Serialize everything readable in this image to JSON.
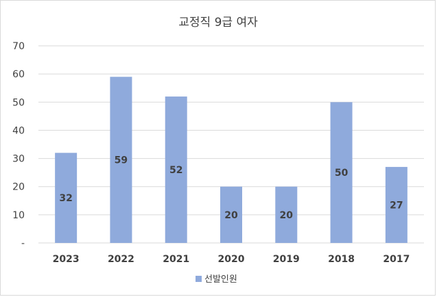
{
  "chart_data": {
    "type": "bar",
    "title": "교정직 9급 여자",
    "categories": [
      "2023",
      "2022",
      "2021",
      "2020",
      "2019",
      "2018",
      "2017"
    ],
    "series": [
      {
        "name": "선발인원",
        "values": [
          32,
          59,
          52,
          20,
          20,
          50,
          27
        ],
        "color": "#8faadc"
      }
    ],
    "ylim": [
      0,
      70
    ],
    "yticks": [
      0,
      10,
      20,
      30,
      40,
      50,
      60,
      70
    ],
    "ytick_labels": [
      "-",
      "10",
      "20",
      "30",
      "40",
      "50",
      "60",
      "70"
    ],
    "grid": true,
    "legend_position": "bottom",
    "data_labels": true
  }
}
